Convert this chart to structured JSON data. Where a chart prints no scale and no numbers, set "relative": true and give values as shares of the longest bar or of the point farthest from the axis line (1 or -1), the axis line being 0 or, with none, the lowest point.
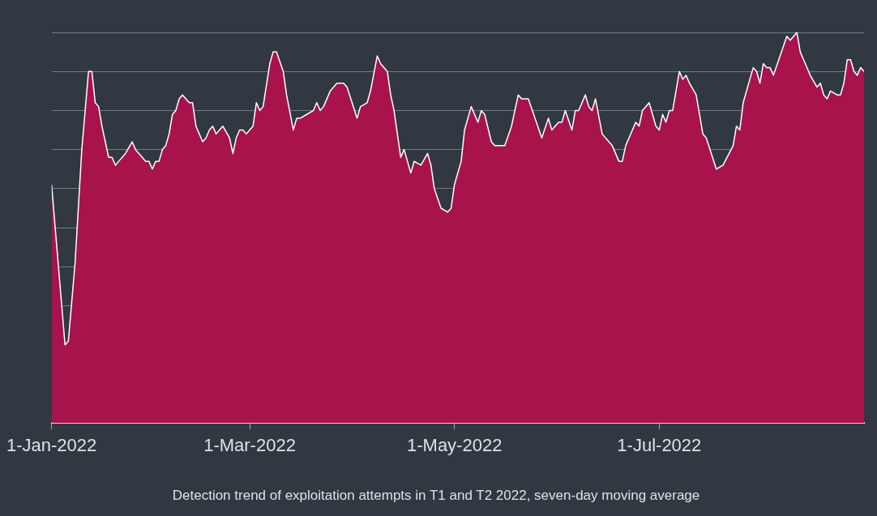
{
  "chart_data": {
    "type": "area",
    "title": "Detection trend of exploitation attempts in T1 and T2 2022, seven-day moving average",
    "relative": true,
    "grid": "y",
    "legend": false,
    "marker": "none",
    "xlim": [
      "2022-01-01",
      "2022-08-31"
    ],
    "xticks": [
      {
        "value": "2022-01-01",
        "label": "1-Jan-2022"
      },
      {
        "value": "2022-03-01",
        "label": "1-Mar-2022"
      },
      {
        "value": "2022-05-01",
        "label": "1-May-2022"
      },
      {
        "value": "2022-07-01",
        "label": "1-Jul-2022"
      }
    ],
    "x": [
      "2022-01-01",
      "2022-01-05",
      "2022-01-06",
      "2022-01-08",
      "2022-01-10",
      "2022-01-12",
      "2022-01-13",
      "2022-01-14",
      "2022-01-15",
      "2022-01-16",
      "2022-01-18",
      "2022-01-19",
      "2022-01-20",
      "2022-01-21",
      "2022-01-23",
      "2022-01-25",
      "2022-01-26",
      "2022-01-28",
      "2022-01-29",
      "2022-01-30",
      "2022-01-31",
      "2022-02-01",
      "2022-02-02",
      "2022-02-03",
      "2022-02-04",
      "2022-02-05",
      "2022-02-06",
      "2022-02-07",
      "2022-02-08",
      "2022-02-09",
      "2022-02-11",
      "2022-02-12",
      "2022-02-13",
      "2022-02-15",
      "2022-02-16",
      "2022-02-17",
      "2022-02-18",
      "2022-02-19",
      "2022-02-20",
      "2022-02-21",
      "2022-02-23",
      "2022-02-24",
      "2022-02-25",
      "2022-02-26",
      "2022-02-27",
      "2022-02-28",
      "2022-03-01",
      "2022-03-02",
      "2022-03-03",
      "2022-03-04",
      "2022-03-05",
      "2022-03-07",
      "2022-03-08",
      "2022-03-09",
      "2022-03-11",
      "2022-03-12",
      "2022-03-14",
      "2022-03-15",
      "2022-03-16",
      "2022-03-18",
      "2022-03-20",
      "2022-03-21",
      "2022-03-22",
      "2022-03-23",
      "2022-03-25",
      "2022-03-27",
      "2022-03-29",
      "2022-03-30",
      "2022-04-02",
      "2022-04-03",
      "2022-04-05",
      "2022-04-06",
      "2022-04-08",
      "2022-04-09",
      "2022-04-11",
      "2022-04-12",
      "2022-04-13",
      "2022-04-15",
      "2022-04-16",
      "2022-04-18",
      "2022-04-19",
      "2022-04-21",
      "2022-04-23",
      "2022-04-24",
      "2022-04-25",
      "2022-04-27",
      "2022-04-29",
      "2022-04-30",
      "2022-05-01",
      "2022-05-03",
      "2022-05-04",
      "2022-05-06",
      "2022-05-08",
      "2022-05-09",
      "2022-05-10",
      "2022-05-12",
      "2022-05-13",
      "2022-05-15",
      "2022-05-16",
      "2022-05-18",
      "2022-05-20",
      "2022-05-21",
      "2022-05-23",
      "2022-05-25",
      "2022-05-27",
      "2022-05-29",
      "2022-05-30",
      "2022-06-01",
      "2022-06-02",
      "2022-06-03",
      "2022-06-05",
      "2022-06-06",
      "2022-06-07",
      "2022-06-09",
      "2022-06-10",
      "2022-06-11",
      "2022-06-12",
      "2022-06-14",
      "2022-06-17",
      "2022-06-19",
      "2022-06-20",
      "2022-06-21",
      "2022-06-22",
      "2022-06-24",
      "2022-06-25",
      "2022-06-26",
      "2022-06-28",
      "2022-06-30",
      "2022-07-01",
      "2022-07-02",
      "2022-07-03",
      "2022-07-04",
      "2022-07-05",
      "2022-07-07",
      "2022-07-08",
      "2022-07-09",
      "2022-07-10",
      "2022-07-12",
      "2022-07-14",
      "2022-07-15",
      "2022-07-18",
      "2022-07-20",
      "2022-07-23",
      "2022-07-24",
      "2022-07-25",
      "2022-07-26",
      "2022-07-29",
      "2022-07-30",
      "2022-07-31",
      "2022-08-01",
      "2022-08-02",
      "2022-08-03",
      "2022-08-04",
      "2022-08-06",
      "2022-08-08",
      "2022-08-09",
      "2022-08-11",
      "2022-08-12",
      "2022-08-13",
      "2022-08-15",
      "2022-08-17",
      "2022-08-18",
      "2022-08-19",
      "2022-08-20",
      "2022-08-21",
      "2022-08-23",
      "2022-08-24",
      "2022-08-25",
      "2022-08-26",
      "2022-08-27",
      "2022-08-28",
      "2022-08-29",
      "2022-08-30",
      "2022-08-31"
    ],
    "series": [
      {
        "color": "#a8134c",
        "values": [
          0.61,
          0.2,
          0.21,
          0.41,
          0.7,
          0.9,
          0.9,
          0.82,
          0.81,
          0.76,
          0.68,
          0.68,
          0.66,
          0.67,
          0.69,
          0.72,
          0.7,
          0.68,
          0.67,
          0.67,
          0.65,
          0.67,
          0.67,
          0.7,
          0.71,
          0.74,
          0.79,
          0.8,
          0.83,
          0.84,
          0.82,
          0.82,
          0.76,
          0.72,
          0.73,
          0.75,
          0.76,
          0.74,
          0.75,
          0.76,
          0.73,
          0.69,
          0.73,
          0.75,
          0.75,
          0.74,
          0.75,
          0.76,
          0.82,
          0.8,
          0.81,
          0.92,
          0.95,
          0.95,
          0.9,
          0.84,
          0.75,
          0.78,
          0.78,
          0.79,
          0.8,
          0.82,
          0.8,
          0.81,
          0.85,
          0.87,
          0.87,
          0.86,
          0.78,
          0.81,
          0.82,
          0.85,
          0.94,
          0.92,
          0.9,
          0.84,
          0.8,
          0.68,
          0.7,
          0.64,
          0.67,
          0.66,
          0.69,
          0.66,
          0.6,
          0.55,
          0.54,
          0.55,
          0.61,
          0.67,
          0.75,
          0.81,
          0.77,
          0.8,
          0.79,
          0.72,
          0.71,
          0.71,
          0.71,
          0.76,
          0.84,
          0.83,
          0.83,
          0.78,
          0.73,
          0.78,
          0.75,
          0.77,
          0.77,
          0.8,
          0.75,
          0.8,
          0.8,
          0.84,
          0.81,
          0.8,
          0.83,
          0.74,
          0.71,
          0.67,
          0.67,
          0.71,
          0.73,
          0.77,
          0.76,
          0.8,
          0.82,
          0.76,
          0.75,
          0.79,
          0.77,
          0.8,
          0.8,
          0.9,
          0.88,
          0.89,
          0.87,
          0.84,
          0.74,
          0.73,
          0.65,
          0.66,
          0.71,
          0.76,
          0.75,
          0.82,
          0.91,
          0.9,
          0.87,
          0.92,
          0.91,
          0.91,
          0.89,
          0.94,
          0.99,
          0.98,
          1,
          0.95,
          0.93,
          0.89,
          0.86,
          0.87,
          0.84,
          0.83,
          0.85,
          0.84,
          0.84,
          0.87,
          0.93,
          0.93,
          0.9,
          0.89,
          0.91,
          0.9
        ]
      }
    ]
  }
}
